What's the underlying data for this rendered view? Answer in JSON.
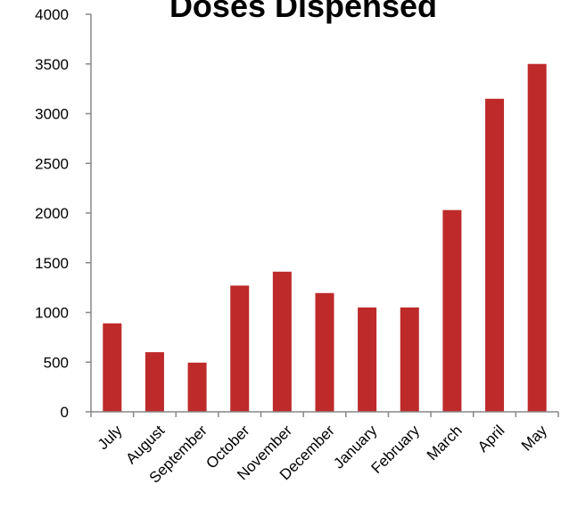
{
  "chart_data": {
    "type": "bar",
    "title": "Doses Dispensed",
    "xlabel": "",
    "ylabel": "",
    "categories": [
      "July",
      "August",
      "September",
      "October",
      "November",
      "December",
      "January",
      "February",
      "March",
      "April",
      "May"
    ],
    "values": [
      890,
      600,
      495,
      1270,
      1410,
      1195,
      1050,
      1050,
      2030,
      3150,
      3500
    ],
    "ylim": [
      0,
      4000
    ],
    "yticks": [
      "0",
      "500",
      "1000",
      "1500",
      "2000",
      "2500",
      "3000",
      "3500",
      "4000"
    ],
    "grid": false,
    "legend": "none",
    "bar_color": "#be2a2a",
    "axis_color": "#888888"
  }
}
